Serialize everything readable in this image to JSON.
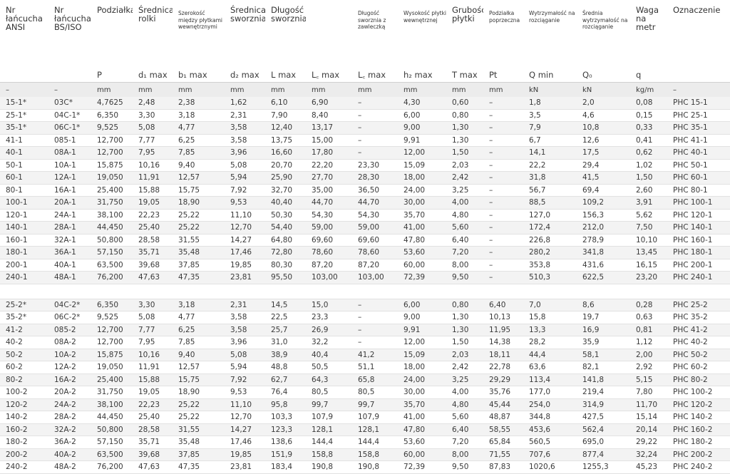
{
  "header": {
    "names": [
      "Nr łańcucha ANSI",
      "Nr łańcucha BS/ISO",
      "Podziałka",
      "Średnica rolki",
      "Szerokość między płytkami wewnętrznymi",
      "Średnica sworznia",
      "Długość sworznia",
      "",
      "Długość sworznia z zawleczką",
      "Wysokość płytki wewnętrznej",
      "Grubość płytki",
      "Podziałka poprzeczna",
      "Wytrzymałość na rozciąganie",
      "Średnia wytrzymałość na rozciąganie",
      "Waga na metr",
      "Oznaczenie"
    ],
    "symbols": [
      "",
      "",
      "P",
      "d₁ max",
      "b₁ max",
      "d₂ max",
      "L max",
      "L꜀ max",
      "L꜀ max",
      "h₂ max",
      "T max",
      "Pt",
      "Q min",
      "Q₀",
      "q",
      ""
    ],
    "units": [
      "–",
      "–",
      "mm",
      "mm",
      "mm",
      "mm",
      "mm",
      "mm",
      "mm",
      "mm",
      "mm",
      "mm",
      "kN",
      "kN",
      "kg/m",
      "–"
    ]
  },
  "rows_group1": [
    [
      "15-1*",
      "03C*",
      "4,7625",
      "2,48",
      "2,38",
      "1,62",
      "6,10",
      "6,90",
      "–",
      "4,30",
      "0,60",
      "–",
      "1,8",
      "2,0",
      "0,08",
      "PHC 15-1"
    ],
    [
      "25-1*",
      "04C-1*",
      "6,350",
      "3,30",
      "3,18",
      "2,31",
      "7,90",
      "8,40",
      "–",
      "6,00",
      "0,80",
      "–",
      "3,5",
      "4,6",
      "0,15",
      "PHC 25-1"
    ],
    [
      "35-1*",
      "06C-1*",
      "9,525",
      "5,08",
      "4,77",
      "3,58",
      "12,40",
      "13,17",
      "–",
      "9,00",
      "1,30",
      "–",
      "7,9",
      "10,8",
      "0,33",
      "PHC 35-1"
    ],
    [
      "41-1",
      "085-1",
      "12,700",
      "7,77",
      "6,25",
      "3,58",
      "13,75",
      "15,00",
      "–",
      "9,91",
      "1,30",
      "–",
      "6,7",
      "12,6",
      "0,41",
      "PHC 41-1"
    ],
    [
      "40-1",
      "08A-1",
      "12,700",
      "7,95",
      "7,85",
      "3,96",
      "16,60",
      "17,80",
      "–",
      "12,00",
      "1,50",
      "–",
      "14,1",
      "17,5",
      "0,62",
      "PHC 40-1"
    ],
    [
      "50-1",
      "10A-1",
      "15,875",
      "10,16",
      "9,40",
      "5,08",
      "20,70",
      "22,20",
      "23,30",
      "15,09",
      "2,03",
      "–",
      "22,2",
      "29,4",
      "1,02",
      "PHC 50-1"
    ],
    [
      "60-1",
      "12A-1",
      "19,050",
      "11,91",
      "12,57",
      "5,94",
      "25,90",
      "27,70",
      "28,30",
      "18,00",
      "2,42",
      "–",
      "31,8",
      "41,5",
      "1,50",
      "PHC 60-1"
    ],
    [
      "80-1",
      "16A-1",
      "25,400",
      "15,88",
      "15,75",
      "7,92",
      "32,70",
      "35,00",
      "36,50",
      "24,00",
      "3,25",
      "–",
      "56,7",
      "69,4",
      "2,60",
      "PHC 80-1"
    ],
    [
      "100-1",
      "20A-1",
      "31,750",
      "19,05",
      "18,90",
      "9,53",
      "40,40",
      "44,70",
      "44,70",
      "30,00",
      "4,00",
      "–",
      "88,5",
      "109,2",
      "3,91",
      "PHC 100-1"
    ],
    [
      "120-1",
      "24A-1",
      "38,100",
      "22,23",
      "25,22",
      "11,10",
      "50,30",
      "54,30",
      "54,30",
      "35,70",
      "4,80",
      "–",
      "127,0",
      "156,3",
      "5,62",
      "PHC 120-1"
    ],
    [
      "140-1",
      "28A-1",
      "44,450",
      "25,40",
      "25,22",
      "12,70",
      "54,40",
      "59,00",
      "59,00",
      "41,00",
      "5,60",
      "–",
      "172,4",
      "212,0",
      "7,50",
      "PHC 140-1"
    ],
    [
      "160-1",
      "32A-1",
      "50,800",
      "28,58",
      "31,55",
      "14,27",
      "64,80",
      "69,60",
      "69,60",
      "47,80",
      "6,40",
      "–",
      "226,8",
      "278,9",
      "10,10",
      "PHC 160-1"
    ],
    [
      "180-1",
      "36A-1",
      "57,150",
      "35,71",
      "35,48",
      "17,46",
      "72,80",
      "78,60",
      "78,60",
      "53,60",
      "7,20",
      "–",
      "280,2",
      "341,8",
      "13,45",
      "PHC 180-1"
    ],
    [
      "200-1",
      "40A-1",
      "63,500",
      "39,68",
      "37,85",
      "19,85",
      "80,30",
      "87,20",
      "87,20",
      "60,00",
      "8,00",
      "–",
      "353,8",
      "431,6",
      "16,15",
      "PHC 200-1"
    ],
    [
      "240-1",
      "48A-1",
      "76,200",
      "47,63",
      "47,35",
      "23,81",
      "95,50",
      "103,00",
      "103,00",
      "72,39",
      "9,50",
      "–",
      "510,3",
      "622,5",
      "23,20",
      "PHC 240-1"
    ]
  ],
  "rows_group2": [
    [
      "25-2*",
      "04C-2*",
      "6,350",
      "3,30",
      "3,18",
      "2,31",
      "14,5",
      "15,0",
      "–",
      "6,00",
      "0,80",
      "6,40",
      "7,0",
      "8,6",
      "0,28",
      "PHC 25-2"
    ],
    [
      "35-2*",
      "06C-2*",
      "9,525",
      "5,08",
      "4,77",
      "3,58",
      "22,5",
      "23,3",
      "–",
      "9,00",
      "1,30",
      "10,13",
      "15,8",
      "19,7",
      "0,63",
      "PHC 35-2"
    ],
    [
      "41-2",
      "085-2",
      "12,700",
      "7,77",
      "6,25",
      "3,58",
      "25,7",
      "26,9",
      "–",
      "9,91",
      "1,30",
      "11,95",
      "13,3",
      "16,9",
      "0,81",
      "PHC 41-2"
    ],
    [
      "40-2",
      "08A-2",
      "12,700",
      "7,95",
      "7,85",
      "3,96",
      "31,0",
      "32,2",
      "–",
      "12,00",
      "1,50",
      "14,38",
      "28,2",
      "35,9",
      "1,12",
      "PHC 40-2"
    ],
    [
      "50-2",
      "10A-2",
      "15,875",
      "10,16",
      "9,40",
      "5,08",
      "38,9",
      "40,4",
      "41,2",
      "15,09",
      "2,03",
      "18,11",
      "44,4",
      "58,1",
      "2,00",
      "PHC 50-2"
    ],
    [
      "60-2",
      "12A-2",
      "19,050",
      "11,91",
      "12,57",
      "5,94",
      "48,8",
      "50,5",
      "51,1",
      "18,00",
      "2,42",
      "22,78",
      "63,6",
      "82,1",
      "2,92",
      "PHC 60-2"
    ],
    [
      "80-2",
      "16A-2",
      "25,400",
      "15,88",
      "15,75",
      "7,92",
      "62,7",
      "64,3",
      "65,8",
      "24,00",
      "3,25",
      "29,29",
      "113,4",
      "141,8",
      "5,15",
      "PHC 80-2"
    ],
    [
      "100-2",
      "20A-2",
      "31,750",
      "19,05",
      "18,90",
      "9,53",
      "76,4",
      "80,5",
      "80,5",
      "30,00",
      "4,00",
      "35,76",
      "177,0",
      "219,4",
      "7,80",
      "PHC 100-2"
    ],
    [
      "120-2",
      "24A-2",
      "38,100",
      "22,23",
      "25,22",
      "11,10",
      "95,8",
      "99,7",
      "99,7",
      "35,70",
      "4,80",
      "45,44",
      "254,0",
      "314,9",
      "11,70",
      "PHC 120-2"
    ],
    [
      "140-2",
      "28A-2",
      "44,450",
      "25,40",
      "25,22",
      "12,70",
      "103,3",
      "107,9",
      "107,9",
      "41,00",
      "5,60",
      "48,87",
      "344,8",
      "427,5",
      "15,14",
      "PHC 140-2"
    ],
    [
      "160-2",
      "32A-2",
      "50,800",
      "28,58",
      "31,55",
      "14,27",
      "123,3",
      "128,1",
      "128,1",
      "47,80",
      "6,40",
      "58,55",
      "453,6",
      "562,4",
      "20,14",
      "PHC 160-2"
    ],
    [
      "180-2",
      "36A-2",
      "57,150",
      "35,71",
      "35,48",
      "17,46",
      "138,6",
      "144,4",
      "144,4",
      "53,60",
      "7,20",
      "65,84",
      "560,5",
      "695,0",
      "29,22",
      "PHC 180-2"
    ],
    [
      "200-2",
      "40A-2",
      "63,500",
      "39,68",
      "37,85",
      "19,85",
      "151,9",
      "158,8",
      "158,8",
      "60,00",
      "8,00",
      "71,55",
      "707,6",
      "877,4",
      "32,24",
      "PHC 200-2"
    ],
    [
      "240-2",
      "48A-2",
      "76,200",
      "47,63",
      "47,35",
      "23,81",
      "183,4",
      "190,8",
      "190,8",
      "72,39",
      "9,50",
      "87,83",
      "1020,6",
      "1255,3",
      "45,23",
      "PHC 240-2"
    ]
  ]
}
